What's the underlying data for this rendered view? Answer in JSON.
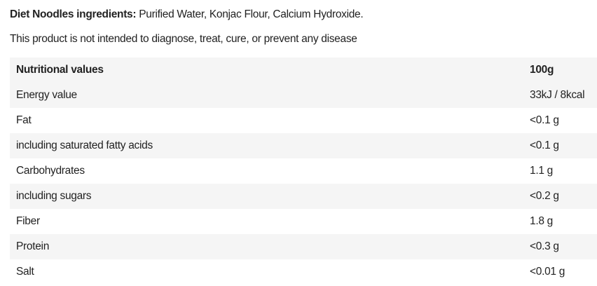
{
  "ingredients": {
    "label": "Diet Noodles ingredients:",
    "text": " Purified Water, Konjac Flour, Calcium Hydroxide."
  },
  "disclaimer": "This product is not intended to diagnose, treat, cure, or prevent any disease",
  "table": {
    "headers": [
      "Nutritional values",
      "100g"
    ],
    "rows": [
      [
        "Energy value",
        "33kJ / 8kcal"
      ],
      [
        "Fat",
        "<0.1 g"
      ],
      [
        "including saturated fatty acids",
        "<0.1 g"
      ],
      [
        "Carbohydrates",
        "1.1 g"
      ],
      [
        "including sugars",
        "<0.2 g"
      ],
      [
        "Fiber",
        "1.8 g"
      ],
      [
        "Protein",
        "<0.3 g"
      ],
      [
        "Salt",
        "<0.01 g"
      ]
    ]
  }
}
